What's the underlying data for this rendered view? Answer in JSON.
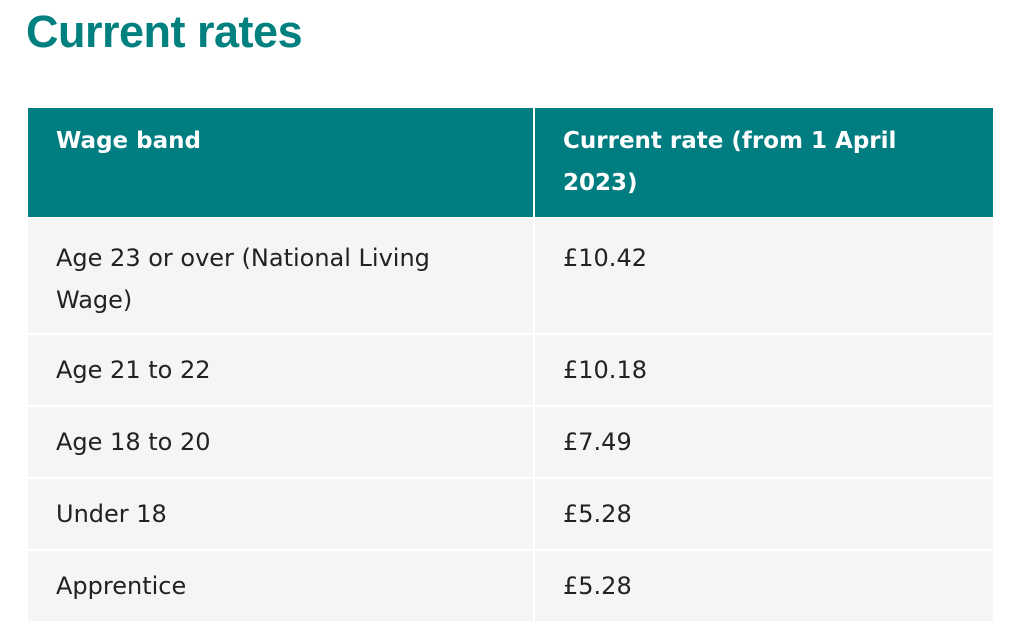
{
  "header": {
    "title": "Current rates"
  },
  "table": {
    "columns": [
      "Wage band",
      "Current rate (from 1 April 2023)"
    ],
    "rows": [
      [
        "Age 23 or over (National Living Wage)",
        "£10.42"
      ],
      [
        "Age 21 to 22",
        "£10.18"
      ],
      [
        "Age 18 to 20",
        "£7.49"
      ],
      [
        "Under 18",
        "£5.28"
      ],
      [
        "Apprentice",
        "£5.28"
      ]
    ]
  }
}
